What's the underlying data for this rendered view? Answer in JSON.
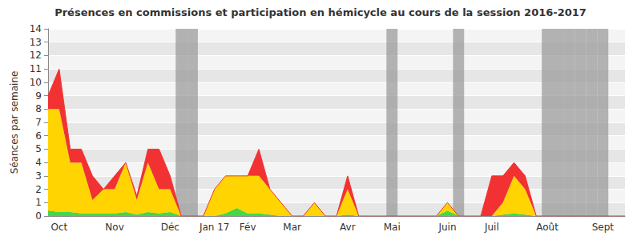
{
  "chart_data": {
    "type": "area",
    "title": "Présences en commissions et participation en hémicycle au cours de la session 2016-2017",
    "y_label": "Séances par semaine",
    "stacked": true,
    "grid": true,
    "categories": [
      null,
      "Oct",
      null,
      null,
      null,
      null,
      "Nov",
      null,
      null,
      null,
      null,
      "Déc",
      null,
      null,
      null,
      "Jan 17",
      null,
      null,
      "Fév",
      null,
      null,
      null,
      "Mar",
      null,
      null,
      null,
      null,
      "Avr",
      null,
      null,
      null,
      "Mai",
      null,
      null,
      null,
      null,
      "Juin",
      null,
      null,
      null,
      "Juil",
      null,
      null,
      null,
      null,
      "Août",
      null,
      null,
      null,
      null,
      "Sept",
      null,
      null
    ],
    "series": [
      {
        "color": "#44d844",
        "values": [
          0.4,
          0.3,
          0.3,
          0.2,
          0.2,
          0.2,
          0.2,
          0.3,
          0.1,
          0.3,
          0.2,
          0.3,
          0,
          0,
          0,
          0,
          0.2,
          0.6,
          0.2,
          0.2,
          0.1,
          0,
          0,
          0,
          0,
          0,
          0,
          0.1,
          0,
          0,
          0,
          0,
          0,
          0,
          0,
          0,
          0.4,
          0,
          0,
          0,
          0,
          0.1,
          0.2,
          0.1,
          0,
          0,
          0,
          0,
          0,
          0,
          0,
          0,
          0
        ]
      },
      {
        "color": "#ffd400",
        "values": [
          7.6,
          7.7,
          3.7,
          3.8,
          1.0,
          1.8,
          1.8,
          3.7,
          1.1,
          3.7,
          1.8,
          1.7,
          0,
          0,
          0,
          2,
          2.8,
          2.4,
          2.8,
          2.8,
          1.9,
          1,
          0,
          0,
          1,
          0,
          0,
          1.9,
          0,
          0,
          0,
          0,
          0,
          0,
          0,
          0,
          0.6,
          0,
          0,
          0,
          0,
          0.9,
          2.8,
          1.9,
          0,
          0,
          0,
          0,
          0,
          0,
          0,
          0,
          0
        ]
      },
      {
        "color": "#f23232",
        "values": [
          1,
          3,
          1,
          1,
          1.8,
          0,
          1,
          0,
          0.3,
          1,
          3,
          1,
          0,
          0,
          0,
          0,
          0,
          0,
          0,
          2,
          0,
          0,
          0,
          0,
          0,
          0,
          0,
          1,
          0,
          0,
          0,
          0,
          0,
          0,
          0,
          0,
          0,
          0,
          0,
          0,
          3,
          2,
          1,
          1,
          0,
          0,
          0,
          0,
          0,
          0,
          0,
          0,
          0
        ]
      }
    ],
    "shaded_weeks": [
      12,
      13,
      31,
      37,
      45,
      46,
      47,
      48,
      49,
      50
    ],
    "ylim": [
      0,
      14
    ],
    "yticks": [
      0,
      1,
      2,
      3,
      4,
      5,
      6,
      7,
      8,
      9,
      10,
      11,
      12,
      13,
      14
    ]
  }
}
